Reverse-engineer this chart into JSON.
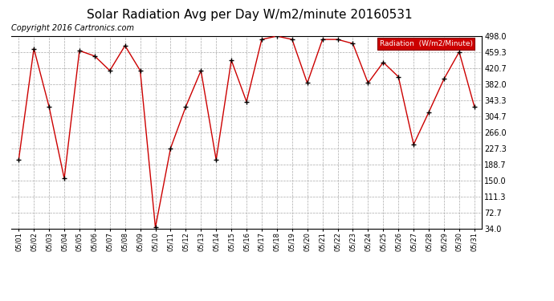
{
  "title": "Solar Radiation Avg per Day W/m2/minute 20160531",
  "copyright": "Copyright 2016 Cartronics.com",
  "legend_label": "Radiation  (W/m2/Minute)",
  "dates": [
    "05/01",
    "05/02",
    "05/03",
    "05/04",
    "05/05",
    "05/06",
    "05/07",
    "05/08",
    "05/09",
    "05/10",
    "05/11",
    "05/12",
    "05/13",
    "05/14",
    "05/15",
    "05/16",
    "05/17",
    "05/18",
    "05/19",
    "05/20",
    "05/21",
    "05/22",
    "05/23",
    "05/24",
    "05/25",
    "05/26",
    "05/27",
    "05/28",
    "05/29",
    "05/30",
    "05/31"
  ],
  "values": [
    200,
    468,
    328,
    155,
    463,
    450,
    415,
    475,
    415,
    37,
    228,
    328,
    415,
    200,
    440,
    340,
    490,
    498,
    490,
    385,
    490,
    490,
    480,
    385,
    435,
    400,
    237,
    315,
    395,
    460,
    328
  ],
  "ylim": [
    34.0,
    498.0
  ],
  "yticks": [
    34.0,
    72.7,
    111.3,
    150.0,
    188.7,
    227.3,
    266.0,
    304.7,
    343.3,
    382.0,
    420.7,
    459.3,
    498.0
  ],
  "line_color": "#cc0000",
  "marker_color": "#000000",
  "bg_color": "#ffffff",
  "plot_bg_color": "#ffffff",
  "grid_color": "#aaaaaa",
  "title_fontsize": 11,
  "copyright_fontsize": 7,
  "tick_fontsize": 7,
  "xtick_fontsize": 6,
  "legend_bg_color": "#cc0000",
  "legend_text_color": "#ffffff"
}
